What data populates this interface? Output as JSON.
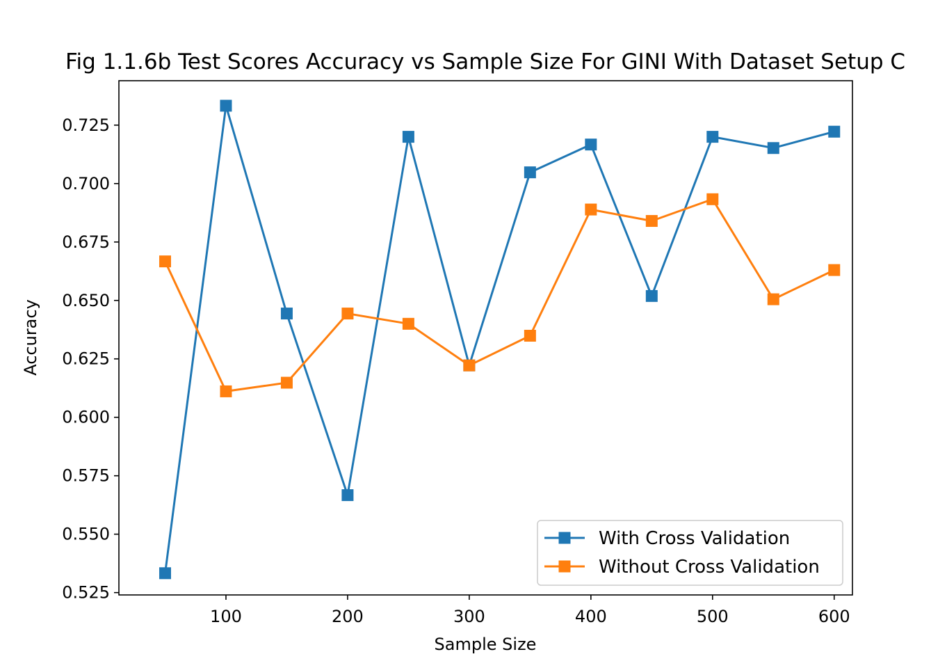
{
  "chart_data": {
    "type": "line",
    "title": "Fig 1.1.6b Test Scores Accuracy vs Sample Size For GINI With Dataset Setup C",
    "xlabel": "Sample Size",
    "ylabel": "Accuracy",
    "x": [
      50,
      100,
      150,
      200,
      250,
      300,
      350,
      400,
      450,
      500,
      550,
      600
    ],
    "xlim": [
      12,
      615
    ],
    "ylim": [
      0.524,
      0.744
    ],
    "xticks": [
      100,
      200,
      300,
      400,
      500,
      600
    ],
    "yticks": [
      0.525,
      0.55,
      0.575,
      0.6,
      0.625,
      0.65,
      0.675,
      0.7,
      0.725
    ],
    "grid": false,
    "legend_position": "lower-right",
    "marker": "square",
    "series": [
      {
        "name": "With Cross Validation",
        "color": "#1f77b4",
        "values": [
          0.5333,
          0.7333,
          0.6444,
          0.5667,
          0.72,
          0.6222,
          0.7048,
          0.7167,
          0.6519,
          0.72,
          0.7152,
          0.7222
        ]
      },
      {
        "name": "Without Cross Validation",
        "color": "#ff7f0e",
        "values": [
          0.6667,
          0.6111,
          0.6148,
          0.6444,
          0.64,
          0.6222,
          0.6349,
          0.6889,
          0.684,
          0.6933,
          0.6505,
          0.663
        ]
      }
    ]
  }
}
